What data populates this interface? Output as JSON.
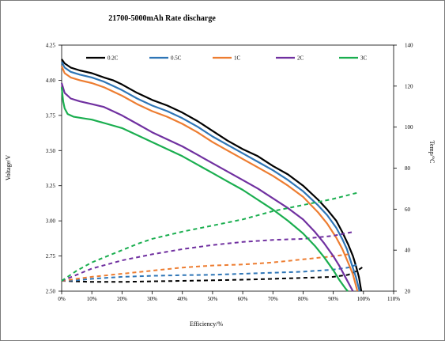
{
  "chart_data": {
    "type": "line",
    "title": "21700-5000mAh Rate discharge",
    "xlabel": "Efficiency/%",
    "ylabel": "Voltage/V",
    "y2label": "Temp/°C",
    "xlim": [
      0,
      110
    ],
    "ylim": [
      2.5,
      4.25
    ],
    "y2lim": [
      20,
      140
    ],
    "x_ticks": [
      "0%",
      "10%",
      "20%",
      "30%",
      "40%",
      "50%",
      "60%",
      "70%",
      "80%",
      "90%",
      "100%",
      "110%"
    ],
    "x_tick_values": [
      0,
      10,
      20,
      30,
      40,
      50,
      60,
      70,
      80,
      90,
      100,
      110
    ],
    "y_ticks": [
      "2.50",
      "2.75",
      "3.00",
      "3.25",
      "3.50",
      "3.75",
      "4.00",
      "4.25"
    ],
    "y_tick_values": [
      2.5,
      2.75,
      3.0,
      3.25,
      3.5,
      3.75,
      4.0,
      4.25
    ],
    "y2_ticks": [
      "20",
      "40",
      "60",
      "80",
      "100",
      "120",
      "140"
    ],
    "y2_tick_values": [
      20,
      40,
      60,
      80,
      100,
      120,
      140
    ],
    "grid": false,
    "legend_position": "top",
    "series": [
      {
        "name": "0.2C",
        "color": "#000000",
        "voltage": [
          [
            0,
            4.15
          ],
          [
            1,
            4.12
          ],
          [
            3,
            4.09
          ],
          [
            6,
            4.07
          ],
          [
            10,
            4.05
          ],
          [
            14,
            4.02
          ],
          [
            17,
            4.0
          ],
          [
            20,
            3.97
          ],
          [
            25,
            3.91
          ],
          [
            30,
            3.86
          ],
          [
            35,
            3.82
          ],
          [
            40,
            3.77
          ],
          [
            45,
            3.71
          ],
          [
            50,
            3.64
          ],
          [
            55,
            3.57
          ],
          [
            60,
            3.51
          ],
          [
            65,
            3.46
          ],
          [
            70,
            3.39
          ],
          [
            75,
            3.33
          ],
          [
            80,
            3.25
          ],
          [
            85,
            3.15
          ],
          [
            88,
            3.08
          ],
          [
            91,
            3.0
          ],
          [
            93,
            2.92
          ],
          [
            95,
            2.83
          ],
          [
            96.5,
            2.75
          ],
          [
            97.5,
            2.68
          ],
          [
            98.5,
            2.6
          ],
          [
            99.3,
            2.5
          ]
        ],
        "temp": [
          [
            0,
            25
          ],
          [
            10,
            24.5
          ],
          [
            20,
            24.5
          ],
          [
            30,
            24.8
          ],
          [
            40,
            25
          ],
          [
            50,
            25.3
          ],
          [
            60,
            25.6
          ],
          [
            70,
            26
          ],
          [
            80,
            26.5
          ],
          [
            90,
            27
          ],
          [
            95,
            28
          ],
          [
            98,
            30
          ],
          [
            100,
            32
          ]
        ]
      },
      {
        "name": "0.5C",
        "color": "#2e75b6",
        "voltage": [
          [
            0,
            4.13
          ],
          [
            1,
            4.09
          ],
          [
            3,
            4.06
          ],
          [
            6,
            4.04
          ],
          [
            10,
            4.02
          ],
          [
            14,
            3.99
          ],
          [
            17,
            3.96
          ],
          [
            20,
            3.93
          ],
          [
            25,
            3.87
          ],
          [
            30,
            3.82
          ],
          [
            35,
            3.78
          ],
          [
            40,
            3.73
          ],
          [
            45,
            3.67
          ],
          [
            50,
            3.6
          ],
          [
            55,
            3.54
          ],
          [
            60,
            3.48
          ],
          [
            65,
            3.42
          ],
          [
            70,
            3.36
          ],
          [
            75,
            3.29
          ],
          [
            80,
            3.21
          ],
          [
            85,
            3.11
          ],
          [
            88,
            3.04
          ],
          [
            91,
            2.95
          ],
          [
            93,
            2.87
          ],
          [
            94.5,
            2.8
          ],
          [
            96,
            2.7
          ],
          [
            97.5,
            2.6
          ],
          [
            98.7,
            2.5
          ]
        ],
        "temp": [
          [
            0,
            25
          ],
          [
            5,
            25.3
          ],
          [
            10,
            26
          ],
          [
            20,
            27
          ],
          [
            30,
            27.5
          ],
          [
            40,
            27.8
          ],
          [
            50,
            28
          ],
          [
            60,
            28.5
          ],
          [
            70,
            29
          ],
          [
            80,
            29.5
          ],
          [
            90,
            30.5
          ],
          [
            95,
            31.5
          ],
          [
            98,
            33
          ]
        ]
      },
      {
        "name": "1C",
        "color": "#ed7d31",
        "voltage": [
          [
            0,
            4.1
          ],
          [
            1,
            4.05
          ],
          [
            3,
            4.02
          ],
          [
            6,
            4.0
          ],
          [
            10,
            3.98
          ],
          [
            14,
            3.95
          ],
          [
            17,
            3.92
          ],
          [
            20,
            3.89
          ],
          [
            25,
            3.83
          ],
          [
            30,
            3.78
          ],
          [
            35,
            3.74
          ],
          [
            40,
            3.69
          ],
          [
            45,
            3.63
          ],
          [
            50,
            3.56
          ],
          [
            55,
            3.5
          ],
          [
            60,
            3.44
          ],
          [
            65,
            3.38
          ],
          [
            70,
            3.32
          ],
          [
            75,
            3.25
          ],
          [
            80,
            3.17
          ],
          [
            85,
            3.06
          ],
          [
            88,
            2.98
          ],
          [
            91,
            2.88
          ],
          [
            93,
            2.8
          ],
          [
            95,
            2.7
          ],
          [
            96.5,
            2.62
          ],
          [
            98,
            2.5
          ]
        ],
        "temp": [
          [
            0,
            25
          ],
          [
            5,
            26
          ],
          [
            10,
            27
          ],
          [
            20,
            28.5
          ],
          [
            30,
            30
          ],
          [
            40,
            31.5
          ],
          [
            50,
            32.5
          ],
          [
            60,
            33
          ],
          [
            70,
            34
          ],
          [
            80,
            35.5
          ],
          [
            90,
            37
          ],
          [
            95,
            38
          ]
        ]
      },
      {
        "name": "2C",
        "color": "#7030a0",
        "voltage": [
          [
            0,
            3.98
          ],
          [
            1,
            3.91
          ],
          [
            3,
            3.87
          ],
          [
            6,
            3.85
          ],
          [
            10,
            3.83
          ],
          [
            14,
            3.81
          ],
          [
            17,
            3.78
          ],
          [
            20,
            3.75
          ],
          [
            25,
            3.69
          ],
          [
            30,
            3.63
          ],
          [
            35,
            3.58
          ],
          [
            40,
            3.53
          ],
          [
            45,
            3.47
          ],
          [
            50,
            3.41
          ],
          [
            55,
            3.35
          ],
          [
            60,
            3.29
          ],
          [
            65,
            3.23
          ],
          [
            70,
            3.16
          ],
          [
            75,
            3.09
          ],
          [
            80,
            3.01
          ],
          [
            84,
            2.92
          ],
          [
            87,
            2.84
          ],
          [
            90,
            2.75
          ],
          [
            92,
            2.68
          ],
          [
            94,
            2.6
          ],
          [
            96,
            2.52
          ],
          [
            96.5,
            2.5
          ]
        ],
        "temp": [
          [
            0,
            25
          ],
          [
            5,
            28
          ],
          [
            10,
            31
          ],
          [
            15,
            33
          ],
          [
            20,
            35
          ],
          [
            30,
            38
          ],
          [
            40,
            40.5
          ],
          [
            50,
            42.5
          ],
          [
            60,
            44
          ],
          [
            70,
            45
          ],
          [
            80,
            45.5
          ],
          [
            90,
            47
          ],
          [
            97,
            49
          ]
        ]
      },
      {
        "name": "3C",
        "color": "#1aae4f",
        "voltage": [
          [
            0,
            3.95
          ],
          [
            0.5,
            3.85
          ],
          [
            1,
            3.8
          ],
          [
            2,
            3.76
          ],
          [
            4,
            3.74
          ],
          [
            7,
            3.73
          ],
          [
            10,
            3.72
          ],
          [
            15,
            3.69
          ],
          [
            20,
            3.66
          ],
          [
            25,
            3.61
          ],
          [
            30,
            3.56
          ],
          [
            35,
            3.51
          ],
          [
            40,
            3.46
          ],
          [
            45,
            3.4
          ],
          [
            50,
            3.34
          ],
          [
            55,
            3.28
          ],
          [
            60,
            3.22
          ],
          [
            65,
            3.15
          ],
          [
            70,
            3.08
          ],
          [
            75,
            3.0
          ],
          [
            80,
            2.91
          ],
          [
            84,
            2.82
          ],
          [
            87,
            2.74
          ],
          [
            90,
            2.65
          ],
          [
            92,
            2.58
          ],
          [
            94,
            2.52
          ],
          [
            94.8,
            2.5
          ]
        ],
        "temp": [
          [
            0,
            25
          ],
          [
            5,
            30
          ],
          [
            10,
            34
          ],
          [
            15,
            37
          ],
          [
            20,
            40
          ],
          [
            25,
            43
          ],
          [
            30,
            45.5
          ],
          [
            40,
            49
          ],
          [
            50,
            52
          ],
          [
            60,
            55
          ],
          [
            70,
            59
          ],
          [
            80,
            62
          ],
          [
            90,
            65
          ],
          [
            98,
            68
          ]
        ]
      }
    ]
  }
}
